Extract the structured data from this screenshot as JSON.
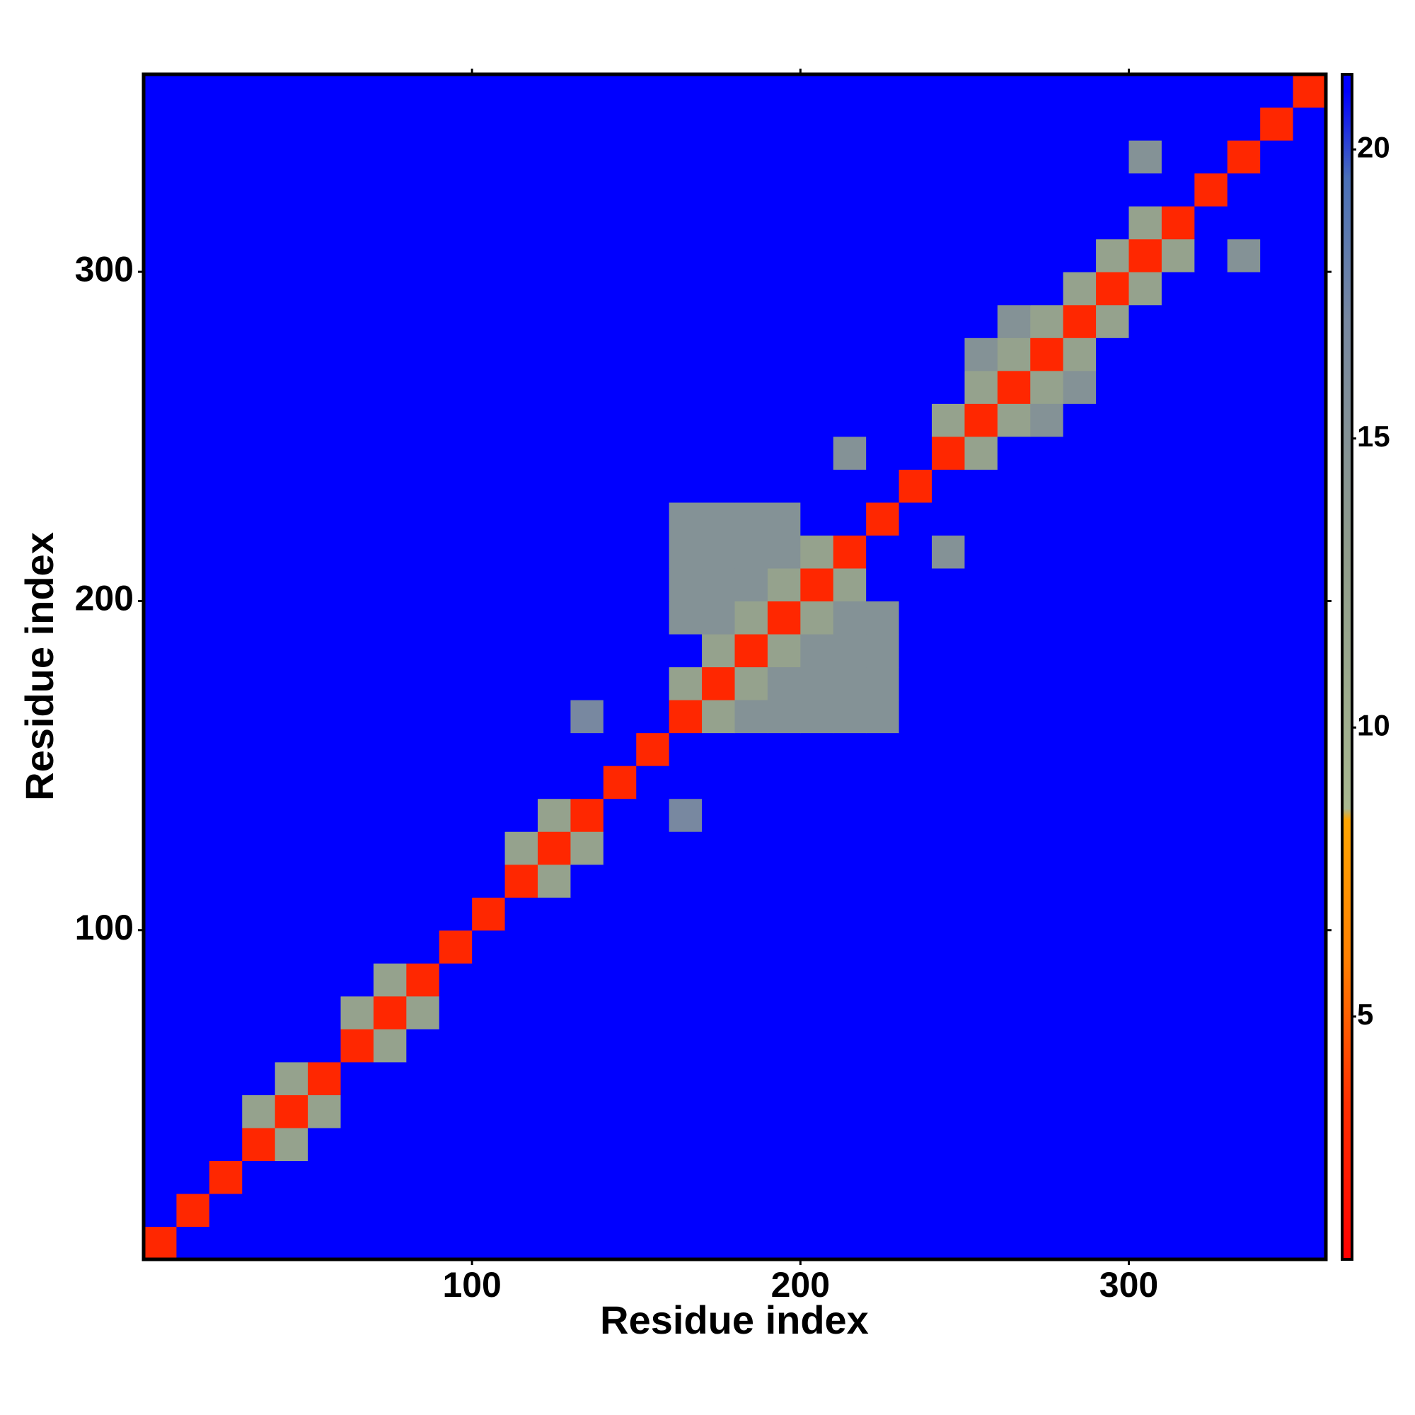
{
  "chart_data": {
    "type": "heatmap",
    "xlabel": "Residue index",
    "ylabel": "Residue index",
    "bins": [
      0,
      10,
      20,
      30,
      40,
      50,
      60,
      70,
      80,
      90,
      100,
      110,
      120,
      130,
      140,
      150,
      160,
      170,
      180,
      190,
      200,
      210,
      220,
      230,
      240,
      250,
      260,
      270,
      280,
      290,
      300,
      310,
      320,
      330,
      340,
      350,
      360
    ],
    "xlim": [
      0,
      360
    ],
    "ylim": [
      0,
      360
    ],
    "xticks": [
      100,
      200,
      300
    ],
    "yticks": [
      100,
      200,
      300
    ],
    "zlim": [
      0.8,
      21.3
    ],
    "zticks": [
      5,
      10,
      15,
      20
    ],
    "colorscale": [
      [
        0.8,
        "#ff0000"
      ],
      [
        3.5,
        "#ff3000"
      ],
      [
        6,
        "#ff8000"
      ],
      [
        8.4,
        "#ffa500"
      ],
      [
        8.6,
        "#a8b890"
      ],
      [
        13,
        "#909c8c"
      ],
      [
        17,
        "#7888a0"
      ],
      [
        19.5,
        "#4a70b8"
      ],
      [
        21,
        "#0000ff"
      ]
    ],
    "z": [
      [
        3,
        21,
        21,
        21,
        21,
        21,
        21,
        21,
        21,
        21,
        21,
        21,
        21,
        21,
        21,
        21,
        21,
        21,
        21,
        21,
        21,
        21,
        21,
        21,
        21,
        21,
        21,
        21,
        21,
        21,
        21,
        21,
        21,
        21,
        21,
        21
      ],
      [
        21,
        3,
        21,
        21,
        21,
        21,
        21,
        21,
        21,
        21,
        21,
        21,
        21,
        21,
        21,
        21,
        21,
        21,
        21,
        21,
        21,
        21,
        21,
        21,
        21,
        21,
        21,
        21,
        21,
        21,
        21,
        21,
        21,
        21,
        21,
        21
      ],
      [
        21,
        21,
        3,
        21,
        21,
        21,
        21,
        21,
        21,
        21,
        21,
        21,
        21,
        21,
        21,
        21,
        21,
        21,
        21,
        21,
        21,
        21,
        21,
        21,
        21,
        21,
        21,
        21,
        21,
        21,
        21,
        21,
        21,
        21,
        21,
        21
      ],
      [
        21,
        21,
        21,
        3,
        12,
        21,
        21,
        21,
        21,
        21,
        21,
        21,
        21,
        21,
        21,
        21,
        21,
        21,
        21,
        21,
        21,
        21,
        21,
        21,
        21,
        21,
        21,
        21,
        21,
        21,
        21,
        21,
        21,
        21,
        21,
        21
      ],
      [
        21,
        21,
        21,
        12,
        3,
        12,
        21,
        21,
        21,
        21,
        21,
        21,
        21,
        21,
        21,
        21,
        21,
        21,
        21,
        21,
        21,
        21,
        21,
        21,
        21,
        21,
        21,
        21,
        21,
        21,
        21,
        21,
        21,
        21,
        21,
        21
      ],
      [
        21,
        21,
        21,
        21,
        12,
        3,
        21,
        21,
        21,
        21,
        21,
        21,
        21,
        21,
        21,
        21,
        21,
        21,
        21,
        21,
        21,
        21,
        21,
        21,
        21,
        21,
        21,
        21,
        21,
        21,
        21,
        21,
        21,
        21,
        21,
        21
      ],
      [
        21,
        21,
        21,
        21,
        21,
        21,
        3,
        12,
        21,
        21,
        21,
        21,
        21,
        21,
        21,
        21,
        21,
        21,
        21,
        21,
        21,
        21,
        21,
        21,
        21,
        21,
        21,
        21,
        21,
        21,
        21,
        21,
        21,
        21,
        21,
        21
      ],
      [
        21,
        21,
        21,
        21,
        21,
        21,
        12,
        3,
        12,
        21,
        21,
        21,
        21,
        21,
        21,
        21,
        21,
        21,
        21,
        21,
        21,
        21,
        21,
        21,
        21,
        21,
        21,
        21,
        21,
        21,
        21,
        21,
        21,
        21,
        21,
        21
      ],
      [
        21,
        21,
        21,
        21,
        21,
        21,
        21,
        12,
        3,
        21,
        21,
        21,
        21,
        21,
        21,
        21,
        21,
        21,
        21,
        21,
        21,
        21,
        21,
        21,
        21,
        21,
        21,
        21,
        21,
        21,
        21,
        21,
        21,
        21,
        21,
        21
      ],
      [
        21,
        21,
        21,
        21,
        21,
        21,
        21,
        21,
        21,
        3,
        21,
        21,
        21,
        21,
        21,
        21,
        21,
        21,
        21,
        21,
        21,
        21,
        21,
        21,
        21,
        21,
        21,
        21,
        21,
        21,
        21,
        21,
        21,
        21,
        21,
        21
      ],
      [
        21,
        21,
        21,
        21,
        21,
        21,
        21,
        21,
        21,
        21,
        3,
        21,
        21,
        21,
        21,
        21,
        21,
        21,
        21,
        21,
        21,
        21,
        21,
        21,
        21,
        21,
        21,
        21,
        21,
        21,
        21,
        21,
        21,
        21,
        21,
        21
      ],
      [
        21,
        21,
        21,
        21,
        21,
        21,
        21,
        21,
        21,
        21,
        21,
        3,
        12,
        21,
        21,
        21,
        21,
        21,
        21,
        21,
        21,
        21,
        21,
        21,
        21,
        21,
        21,
        21,
        21,
        21,
        21,
        21,
        21,
        21,
        21,
        21
      ],
      [
        21,
        21,
        21,
        21,
        21,
        21,
        21,
        21,
        21,
        21,
        21,
        12,
        3,
        12,
        21,
        21,
        21,
        21,
        21,
        21,
        21,
        21,
        21,
        21,
        21,
        21,
        21,
        21,
        21,
        21,
        21,
        21,
        21,
        21,
        21,
        21
      ],
      [
        21,
        21,
        21,
        21,
        21,
        21,
        21,
        21,
        21,
        21,
        21,
        21,
        12,
        3,
        21,
        21,
        17,
        21,
        21,
        21,
        21,
        21,
        21,
        21,
        21,
        21,
        21,
        21,
        21,
        21,
        21,
        21,
        21,
        21,
        21,
        21
      ],
      [
        21,
        21,
        21,
        21,
        21,
        21,
        21,
        21,
        21,
        21,
        21,
        21,
        21,
        21,
        3,
        21,
        21,
        21,
        21,
        21,
        21,
        21,
        21,
        21,
        21,
        21,
        21,
        21,
        21,
        21,
        21,
        21,
        21,
        21,
        21,
        21
      ],
      [
        21,
        21,
        21,
        21,
        21,
        21,
        21,
        21,
        21,
        21,
        21,
        21,
        21,
        21,
        21,
        3,
        21,
        21,
        21,
        21,
        21,
        21,
        21,
        21,
        21,
        21,
        21,
        21,
        21,
        21,
        21,
        21,
        21,
        21,
        21,
        21
      ],
      [
        21,
        21,
        21,
        21,
        21,
        21,
        21,
        21,
        21,
        21,
        21,
        21,
        21,
        17,
        21,
        21,
        3,
        12,
        15,
        15,
        15,
        15,
        15,
        21,
        21,
        21,
        21,
        21,
        21,
        21,
        21,
        21,
        21,
        21,
        21,
        21
      ],
      [
        21,
        21,
        21,
        21,
        21,
        21,
        21,
        21,
        21,
        21,
        21,
        21,
        21,
        21,
        21,
        21,
        12,
        3,
        12,
        15,
        15,
        15,
        15,
        21,
        21,
        21,
        21,
        21,
        21,
        21,
        21,
        21,
        21,
        21,
        21,
        21
      ],
      [
        21,
        21,
        21,
        21,
        21,
        21,
        21,
        21,
        21,
        21,
        21,
        21,
        21,
        21,
        21,
        21,
        21,
        12,
        3,
        12,
        15,
        15,
        15,
        21,
        21,
        21,
        21,
        21,
        21,
        21,
        21,
        21,
        21,
        21,
        21,
        21
      ],
      [
        21,
        21,
        21,
        21,
        21,
        21,
        21,
        21,
        21,
        21,
        21,
        21,
        21,
        21,
        21,
        21,
        15,
        15,
        12,
        3,
        12,
        15,
        15,
        21,
        21,
        21,
        21,
        21,
        21,
        21,
        21,
        21,
        21,
        21,
        21,
        21
      ],
      [
        21,
        21,
        21,
        21,
        21,
        21,
        21,
        21,
        21,
        21,
        21,
        21,
        21,
        21,
        21,
        21,
        15,
        15,
        15,
        12,
        3,
        12,
        21,
        21,
        21,
        21,
        21,
        21,
        21,
        21,
        21,
        21,
        21,
        21,
        21,
        21
      ],
      [
        21,
        21,
        21,
        21,
        21,
        21,
        21,
        21,
        21,
        21,
        21,
        21,
        21,
        21,
        21,
        21,
        15,
        15,
        15,
        15,
        12,
        3,
        21,
        21,
        15,
        21,
        21,
        21,
        21,
        21,
        21,
        21,
        21,
        21,
        21,
        21
      ],
      [
        21,
        21,
        21,
        21,
        21,
        21,
        21,
        21,
        21,
        21,
        21,
        21,
        21,
        21,
        21,
        21,
        15,
        15,
        15,
        15,
        21,
        21,
        3,
        21,
        21,
        21,
        21,
        21,
        21,
        21,
        21,
        21,
        21,
        21,
        21,
        21
      ],
      [
        21,
        21,
        21,
        21,
        21,
        21,
        21,
        21,
        21,
        21,
        21,
        21,
        21,
        21,
        21,
        21,
        21,
        21,
        21,
        21,
        21,
        21,
        21,
        3,
        21,
        21,
        21,
        21,
        21,
        21,
        21,
        21,
        21,
        21,
        21,
        21
      ],
      [
        21,
        21,
        21,
        21,
        21,
        21,
        21,
        21,
        21,
        21,
        21,
        21,
        21,
        21,
        21,
        21,
        21,
        21,
        21,
        21,
        21,
        15,
        21,
        21,
        3,
        12,
        21,
        21,
        21,
        21,
        21,
        21,
        21,
        21,
        21,
        21
      ],
      [
        21,
        21,
        21,
        21,
        21,
        21,
        21,
        21,
        21,
        21,
        21,
        21,
        21,
        21,
        21,
        21,
        21,
        21,
        21,
        21,
        21,
        21,
        21,
        21,
        12,
        3,
        12,
        15,
        21,
        21,
        21,
        21,
        21,
        21,
        21,
        21
      ],
      [
        21,
        21,
        21,
        21,
        21,
        21,
        21,
        21,
        21,
        21,
        21,
        21,
        21,
        21,
        21,
        21,
        21,
        21,
        21,
        21,
        21,
        21,
        21,
        21,
        21,
        12,
        3,
        12,
        15,
        21,
        21,
        21,
        21,
        21,
        21,
        21
      ],
      [
        21,
        21,
        21,
        21,
        21,
        21,
        21,
        21,
        21,
        21,
        21,
        21,
        21,
        21,
        21,
        21,
        21,
        21,
        21,
        21,
        21,
        21,
        21,
        21,
        21,
        15,
        12,
        3,
        12,
        21,
        21,
        21,
        21,
        21,
        21,
        21
      ],
      [
        21,
        21,
        21,
        21,
        21,
        21,
        21,
        21,
        21,
        21,
        21,
        21,
        21,
        21,
        21,
        21,
        21,
        21,
        21,
        21,
        21,
        21,
        21,
        21,
        21,
        21,
        15,
        12,
        3,
        12,
        21,
        21,
        21,
        21,
        21,
        21
      ],
      [
        21,
        21,
        21,
        21,
        21,
        21,
        21,
        21,
        21,
        21,
        21,
        21,
        21,
        21,
        21,
        21,
        21,
        21,
        21,
        21,
        21,
        21,
        21,
        21,
        21,
        21,
        21,
        21,
        12,
        3,
        12,
        21,
        21,
        21,
        21,
        21
      ],
      [
        21,
        21,
        21,
        21,
        21,
        21,
        21,
        21,
        21,
        21,
        21,
        21,
        21,
        21,
        21,
        21,
        21,
        21,
        21,
        21,
        21,
        21,
        21,
        21,
        21,
        21,
        21,
        21,
        21,
        12,
        3,
        12,
        21,
        15,
        21,
        21
      ],
      [
        21,
        21,
        21,
        21,
        21,
        21,
        21,
        21,
        21,
        21,
        21,
        21,
        21,
        21,
        21,
        21,
        21,
        21,
        21,
        21,
        21,
        21,
        21,
        21,
        21,
        21,
        21,
        21,
        21,
        21,
        12,
        3,
        21,
        21,
        21,
        21
      ],
      [
        21,
        21,
        21,
        21,
        21,
        21,
        21,
        21,
        21,
        21,
        21,
        21,
        21,
        21,
        21,
        21,
        21,
        21,
        21,
        21,
        21,
        21,
        21,
        21,
        21,
        21,
        21,
        21,
        21,
        21,
        21,
        21,
        3,
        21,
        21,
        21
      ],
      [
        21,
        21,
        21,
        21,
        21,
        21,
        21,
        21,
        21,
        21,
        21,
        21,
        21,
        21,
        21,
        21,
        21,
        21,
        21,
        21,
        21,
        21,
        21,
        21,
        21,
        21,
        21,
        21,
        21,
        21,
        15,
        21,
        21,
        3,
        21,
        21
      ],
      [
        21,
        21,
        21,
        21,
        21,
        21,
        21,
        21,
        21,
        21,
        21,
        21,
        21,
        21,
        21,
        21,
        21,
        21,
        21,
        21,
        21,
        21,
        21,
        21,
        21,
        21,
        21,
        21,
        21,
        21,
        21,
        21,
        21,
        21,
        3,
        21
      ],
      [
        21,
        21,
        21,
        21,
        21,
        21,
        21,
        21,
        21,
        21,
        21,
        21,
        21,
        21,
        21,
        21,
        21,
        21,
        21,
        21,
        21,
        21,
        21,
        21,
        21,
        21,
        21,
        21,
        21,
        21,
        21,
        21,
        21,
        21,
        21,
        3
      ]
    ]
  }
}
